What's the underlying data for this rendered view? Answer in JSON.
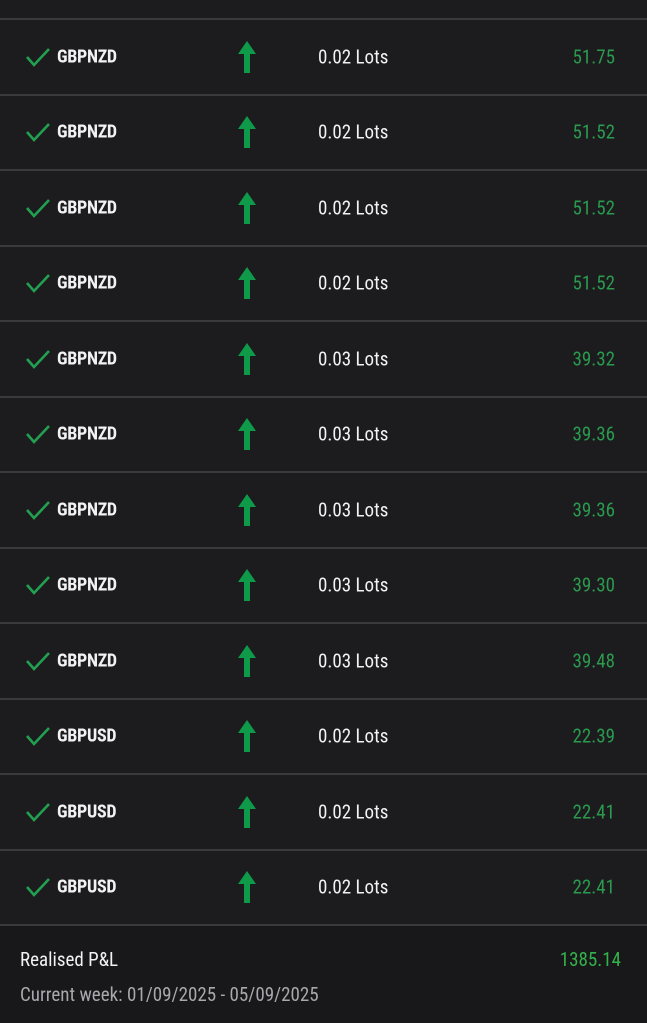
{
  "colors": {
    "profit": "#2a9a4e",
    "arrow": "#0e9a48",
    "check": "#22a050",
    "total": "#34b24a"
  },
  "trades": [
    {
      "symbol": "GBPNZD",
      "direction": "buy",
      "status_icon": "check-icon",
      "lots": "0.02 Lots",
      "pnl": "51.75"
    },
    {
      "symbol": "GBPNZD",
      "direction": "buy",
      "status_icon": "check-icon",
      "lots": "0.02 Lots",
      "pnl": "51.52"
    },
    {
      "symbol": "GBPNZD",
      "direction": "buy",
      "status_icon": "check-icon",
      "lots": "0.02 Lots",
      "pnl": "51.52"
    },
    {
      "symbol": "GBPNZD",
      "direction": "buy",
      "status_icon": "check-icon",
      "lots": "0.02 Lots",
      "pnl": "51.52"
    },
    {
      "symbol": "GBPNZD",
      "direction": "buy",
      "status_icon": "check-icon",
      "lots": "0.03 Lots",
      "pnl": "39.32"
    },
    {
      "symbol": "GBPNZD",
      "direction": "buy",
      "status_icon": "check-icon",
      "lots": "0.03 Lots",
      "pnl": "39.36"
    },
    {
      "symbol": "GBPNZD",
      "direction": "buy",
      "status_icon": "check-icon",
      "lots": "0.03 Lots",
      "pnl": "39.36"
    },
    {
      "symbol": "GBPNZD",
      "direction": "buy",
      "status_icon": "check-icon",
      "lots": "0.03 Lots",
      "pnl": "39.30"
    },
    {
      "symbol": "GBPNZD",
      "direction": "buy",
      "status_icon": "check-icon",
      "lots": "0.03 Lots",
      "pnl": "39.48"
    },
    {
      "symbol": "GBPUSD",
      "direction": "buy",
      "status_icon": "check-icon",
      "lots": "0.02 Lots",
      "pnl": "22.39"
    },
    {
      "symbol": "GBPUSD",
      "direction": "buy",
      "status_icon": "check-icon",
      "lots": "0.02 Lots",
      "pnl": "22.41"
    },
    {
      "symbol": "GBPUSD",
      "direction": "buy",
      "status_icon": "check-icon",
      "lots": "0.02 Lots",
      "pnl": "22.41"
    }
  ],
  "footer": {
    "label": "Realised P&L",
    "total": "1385.14",
    "week": "Current week: 01/09/2025 - 05/09/2025"
  }
}
